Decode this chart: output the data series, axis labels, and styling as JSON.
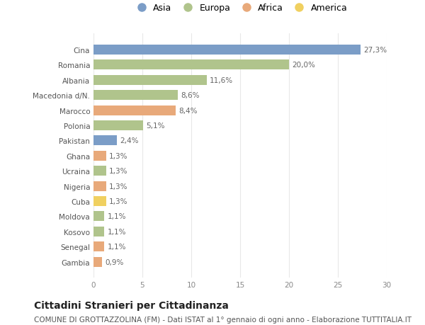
{
  "countries": [
    "Cina",
    "Romania",
    "Albania",
    "Macedonia d/N.",
    "Marocco",
    "Polonia",
    "Pakistan",
    "Ghana",
    "Ucraina",
    "Nigeria",
    "Cuba",
    "Moldova",
    "Kosovo",
    "Senegal",
    "Gambia"
  ],
  "values": [
    27.3,
    20.0,
    11.6,
    8.6,
    8.4,
    5.1,
    2.4,
    1.3,
    1.3,
    1.3,
    1.3,
    1.1,
    1.1,
    1.1,
    0.9
  ],
  "labels": [
    "27,3%",
    "20,0%",
    "11,6%",
    "8,6%",
    "8,4%",
    "5,1%",
    "2,4%",
    "1,3%",
    "1,3%",
    "1,3%",
    "1,3%",
    "1,1%",
    "1,1%",
    "1,1%",
    "0,9%"
  ],
  "continents": [
    "Asia",
    "Europa",
    "Europa",
    "Europa",
    "Africa",
    "Europa",
    "Asia",
    "Africa",
    "Europa",
    "Africa",
    "America",
    "Europa",
    "Europa",
    "Africa",
    "Africa"
  ],
  "continent_colors": {
    "Asia": "#7b9dc7",
    "Europa": "#b0c48c",
    "Africa": "#e8a97a",
    "America": "#f0d060"
  },
  "legend_order": [
    "Asia",
    "Europa",
    "Africa",
    "America"
  ],
  "title": "Cittadini Stranieri per Cittadinanza",
  "subtitle": "COMUNE DI GROTTAZZOLINA (FM) - Dati ISTAT al 1° gennaio di ogni anno - Elaborazione TUTTITALIA.IT",
  "xlim": [
    0,
    30
  ],
  "xticks": [
    0,
    5,
    10,
    15,
    20,
    25,
    30
  ],
  "bg_color": "#ffffff",
  "grid_color": "#e8e8e8",
  "bar_height": 0.65,
  "title_fontsize": 10,
  "subtitle_fontsize": 7.5,
  "label_fontsize": 7.5,
  "tick_fontsize": 7.5,
  "legend_fontsize": 9
}
